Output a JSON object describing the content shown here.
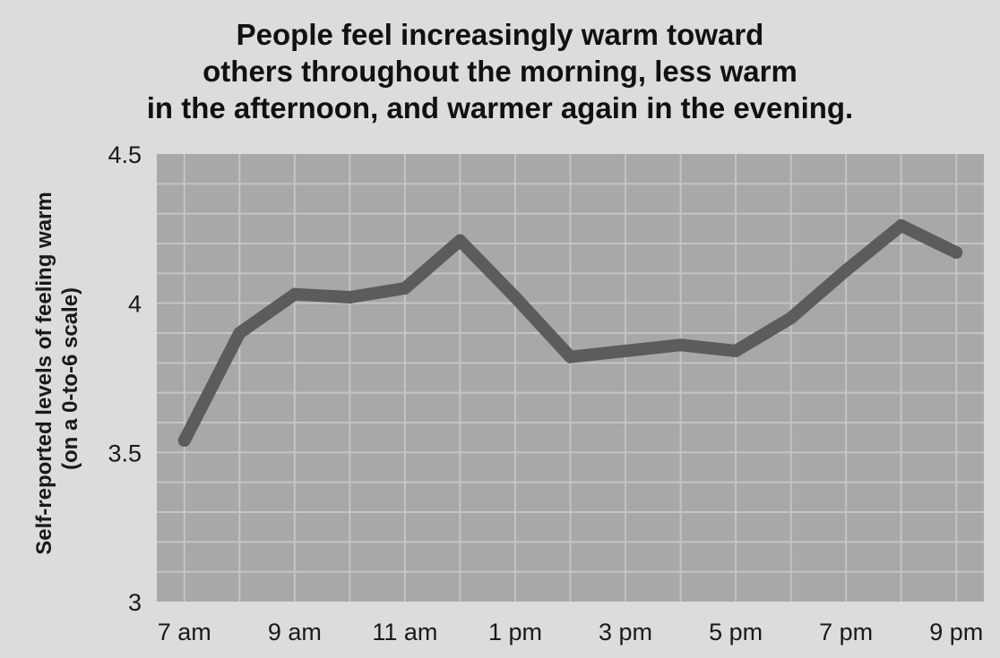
{
  "chart_data": {
    "type": "line",
    "title_lines": [
      "People feel increasingly warm toward",
      "others throughout the morning, less warm",
      "in the afternoon, and warmer again in the evening."
    ],
    "ylabel_lines": [
      "Self-reported levels of feeling warm",
      "(on a 0-to-6 scale)"
    ],
    "xlabel": "",
    "x_tick_labels": [
      "7 am",
      "9 am",
      "11 am",
      "1 pm",
      "3 pm",
      "5 pm",
      "7 pm",
      "9 pm"
    ],
    "x_tick_hours": [
      7,
      9,
      11,
      13,
      15,
      17,
      19,
      21
    ],
    "y_tick_labels": [
      "4.5",
      "4",
      "3.5",
      "3"
    ],
    "y_tick_values": [
      4.5,
      4,
      3.5,
      3
    ],
    "ylim": [
      3,
      4.5
    ],
    "xlim": [
      6.5,
      21.5
    ],
    "grid": true,
    "series": [
      {
        "x": [
          7,
          8,
          9,
          10,
          11,
          12,
          13,
          14,
          15,
          16,
          17,
          18,
          19,
          20,
          21
        ],
        "values": [
          3.54,
          3.9,
          4.03,
          4.02,
          4.05,
          4.21,
          4.02,
          3.82,
          3.84,
          3.86,
          3.84,
          3.95,
          4.11,
          4.26,
          4.17
        ]
      }
    ],
    "colors": {
      "background": "#dcdcdc",
      "plot_area": "#a8a8a8",
      "grid": "#c4c4c4",
      "line": "#5c5c5c"
    }
  }
}
